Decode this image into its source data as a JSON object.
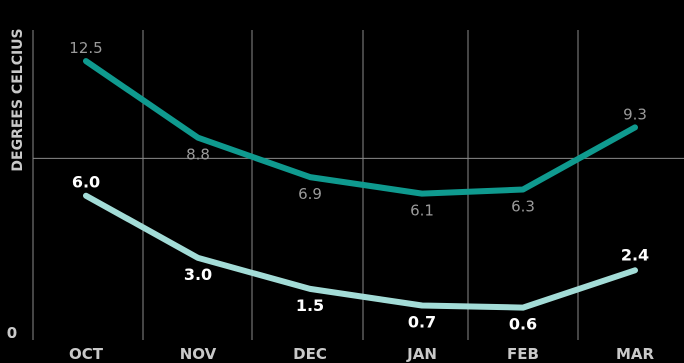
{
  "chart_data": {
    "type": "line",
    "categories": [
      "OCT",
      "NOV",
      "DEC",
      "JAN",
      "FEB",
      "MAR"
    ],
    "ylabel": "DEGREES CELCIUS",
    "y_ticks": [
      {
        "value": 0,
        "label": "0"
      }
    ],
    "ylim": [
      0,
      14
    ],
    "grid": {
      "vertical": true,
      "reference_line_at": 7.8
    },
    "series": [
      {
        "values": [
          12.5,
          8.8,
          6.9,
          6.1,
          6.3,
          9.3
        ],
        "labels": [
          "12.5",
          "8.8",
          "6.9",
          "6.1",
          "6.3",
          "9.3"
        ],
        "color": "#0f9a8f"
      },
      {
        "values": [
          6.0,
          3.0,
          1.5,
          0.7,
          0.6,
          2.4
        ],
        "labels": [
          "6.0",
          "3.0",
          "1.5",
          "0.7",
          "0.6",
          "2.4"
        ],
        "color": "#a3dcd7"
      }
    ],
    "colors": {
      "background": "#000000",
      "grid": "#8a8a8a",
      "tick_text": "#c9c9c9"
    }
  }
}
